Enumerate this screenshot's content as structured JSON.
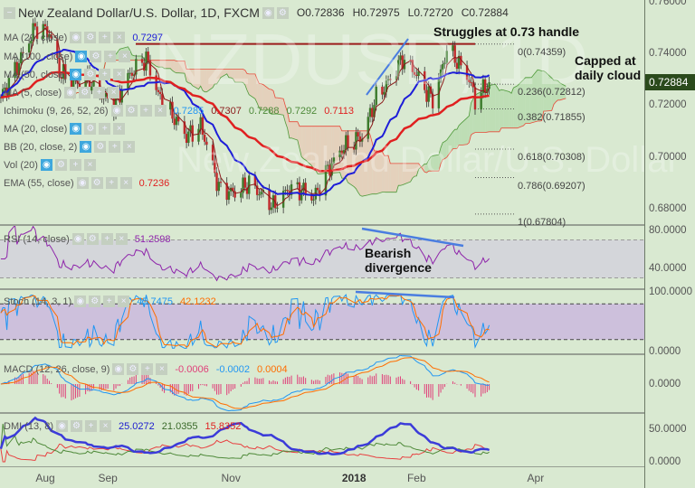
{
  "header": {
    "title": "New Zealand Dollar/U.S. Dollar, 1D, FXCM",
    "open": "O0.72836",
    "high": "H0.72975",
    "low": "L0.72720",
    "close": "C0.72884"
  },
  "watermark": {
    "symbol": "NZDUSD, 1D",
    "name": "New Zealand Dollar/U.S. Dollar"
  },
  "indicators": [
    {
      "label": "MA (20, close)",
      "value": "0.7297",
      "color": "#1d1dd8"
    },
    {
      "label": "MA (100, close)",
      "value": ""
    },
    {
      "label": "MA (50, close)",
      "value": ""
    },
    {
      "label": "MA (5, close)",
      "value": ""
    },
    {
      "label": "Ichimoku (9, 26, 52, 26)",
      "values": [
        "0.7285",
        "0.7307",
        "0.7288",
        "0.7292",
        "0.7113"
      ]
    },
    {
      "label": "MA (20, close)",
      "value": ""
    },
    {
      "label": "BB (20, close, 2)",
      "value": ""
    },
    {
      "label": "Vol (20)",
      "value": ""
    },
    {
      "label": "EMA (55, close)",
      "value": "0.7236",
      "color": "#e02020"
    }
  ],
  "rsi": {
    "label": "RSI (14, close)",
    "value": "51.2598",
    "ticks": [
      "80.0000",
      "40.0000"
    ]
  },
  "stoch": {
    "label": "Stoch (14, 3, 1)",
    "k": "45.7475",
    "d": "42.1232",
    "ticks": [
      "100.0000",
      "0.0000"
    ]
  },
  "macd": {
    "label": "MACD (12, 26, close, 9)",
    "hist": "-0.0006",
    "macd": "-0.0002",
    "signal": "0.0004",
    "ticks": [
      "0.0000"
    ]
  },
  "dmi": {
    "label": "DMI (13, 8)",
    "adx": "25.0272",
    "plus": "21.0355",
    "minus": "15.8352",
    "ticks": [
      "50.0000",
      "0.0000"
    ]
  },
  "price_axis": {
    "ticks": [
      "0.76000",
      "0.74000",
      "0.72000",
      "0.70000",
      "0.68000"
    ],
    "last": "0.72884"
  },
  "time_axis": [
    "Aug",
    "Sep",
    "Nov",
    "2018",
    "Feb",
    "Apr"
  ],
  "annotations": {
    "resistance": "Struggles at 0.73 handle",
    "cloud": [
      "Capped at",
      "daily cloud"
    ],
    "divergence": [
      "Bearish",
      "divergence"
    ]
  },
  "fibonacci": [
    {
      "label": "0(0.74359)",
      "level": 0.74359
    },
    {
      "label": "0.236(0.72812)",
      "level": 0.72812
    },
    {
      "label": "0.382(0.71855)",
      "level": 0.71855
    },
    {
      "label": "0.618(0.70308)",
      "level": 0.70308
    },
    {
      "label": "0.786(0.69207)",
      "level": 0.69207
    },
    {
      "label": "1(0.67804)",
      "level": 0.67804
    }
  ],
  "colors": {
    "background": "#d9e9d1",
    "up": "#3b7a2b",
    "down": "#c0282b",
    "ma20": "#1d1dd8",
    "ema55": "#e02020",
    "ma5": "#8b1a1a",
    "cloud_bull": "#b9dcb0",
    "cloud_bear": "#e5cdb9",
    "rsi": "#8e24aa",
    "stoch_k": "#2196f3",
    "stoch_d": "#ff6d00",
    "adx": "#3b3bd9",
    "di_plus": "#4f8a3a",
    "di_minus": "#e84040"
  },
  "chart_data": {
    "type": "candlestick",
    "title": "New Zealand Dollar/U.S. Dollar, 1D, FXCM",
    "ylim": [
      0.67,
      0.765
    ],
    "resistance": 0.7436,
    "closes": [
      [
        "2017-07-10",
        0.723
      ],
      [
        "2017-07-18",
        0.735
      ],
      [
        "2017-07-27",
        0.75
      ],
      [
        "2017-08-03",
        0.748
      ],
      [
        "2017-08-08",
        0.733
      ],
      [
        "2017-08-15",
        0.728
      ],
      [
        "2017-08-22",
        0.73
      ],
      [
        "2017-08-29",
        0.724
      ],
      [
        "2017-09-04",
        0.72
      ],
      [
        "2017-09-12",
        0.732
      ],
      [
        "2017-09-20",
        0.738
      ],
      [
        "2017-09-27",
        0.722
      ],
      [
        "2017-10-04",
        0.715
      ],
      [
        "2017-10-10",
        0.708
      ],
      [
        "2017-10-17",
        0.712
      ],
      [
        "2017-10-20",
        0.705
      ],
      [
        "2017-10-26",
        0.688
      ],
      [
        "2017-11-03",
        0.686
      ],
      [
        "2017-11-10",
        0.69
      ],
      [
        "2017-11-17",
        0.685
      ],
      [
        "2017-11-22",
        0.681
      ],
      [
        "2017-11-30",
        0.688
      ],
      [
        "2017-12-07",
        0.687
      ],
      [
        "2017-12-12",
        0.684
      ],
      [
        "2017-12-18",
        0.694
      ],
      [
        "2017-12-27",
        0.704
      ],
      [
        "2018-01-05",
        0.708
      ],
      [
        "2018-01-12",
        0.723
      ],
      [
        "2018-01-19",
        0.73
      ],
      [
        "2018-01-25",
        0.738
      ],
      [
        "2018-01-31",
        0.733
      ],
      [
        "2018-02-06",
        0.725
      ],
      [
        "2018-02-09",
        0.722
      ],
      [
        "2018-02-14",
        0.735
      ],
      [
        "2018-02-16",
        0.742
      ],
      [
        "2018-02-22",
        0.736
      ],
      [
        "2018-02-27",
        0.73
      ],
      [
        "2018-03-02",
        0.722
      ],
      [
        "2018-03-06",
        0.726
      ],
      [
        "2018-03-09",
        0.72884
      ]
    ]
  }
}
